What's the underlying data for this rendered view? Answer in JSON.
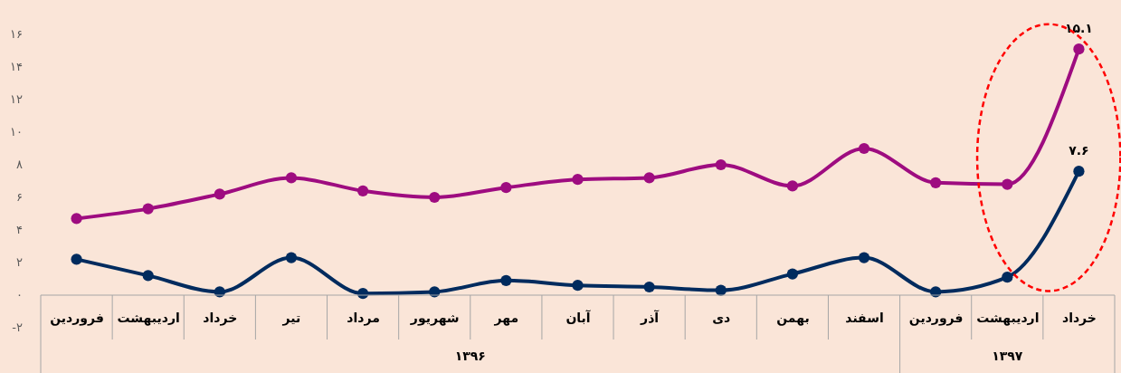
{
  "chart_data": {
    "type": "line",
    "categories": [
      "فروردین",
      "اردیبهشت",
      "خرداد",
      "تیر",
      "مرداد",
      "شهریور",
      "مهر",
      "آبان",
      "آذر",
      "دی",
      "بهمن",
      "اسفند",
      "فروردین",
      "اردیبهشت",
      "خرداد"
    ],
    "series": [
      {
        "color": "#9e0c80",
        "values": [
          4.7,
          5.3,
          6.2,
          7.2,
          6.4,
          6.0,
          6.6,
          7.1,
          7.2,
          8.0,
          6.7,
          9.0,
          6.9,
          6.8,
          15.1
        ],
        "value_labels": [
          null,
          null,
          null,
          null,
          null,
          null,
          null,
          null,
          null,
          null,
          null,
          null,
          null,
          null,
          "۱۵.۱"
        ]
      },
      {
        "color": "#002b5e",
        "values": [
          2.2,
          1.2,
          0.2,
          2.3,
          0.1,
          0.2,
          0.9,
          0.6,
          0.5,
          0.3,
          1.3,
          2.3,
          0.2,
          1.1,
          7.6
        ],
        "value_labels": [
          null,
          null,
          null,
          null,
          null,
          null,
          null,
          null,
          null,
          null,
          null,
          null,
          null,
          null,
          "۷.۶"
        ]
      }
    ],
    "ylim": [
      -2,
      16
    ],
    "yticks": [
      {
        "value": -2,
        "label": "-۲"
      },
      {
        "value": 0,
        "label": "۰"
      },
      {
        "value": 2,
        "label": "۲"
      },
      {
        "value": 4,
        "label": "۴"
      },
      {
        "value": 6,
        "label": "۶"
      },
      {
        "value": 8,
        "label": "۸"
      },
      {
        "value": 10,
        "label": "۱۰"
      },
      {
        "value": 12,
        "label": "۱۲"
      },
      {
        "value": 14,
        "label": "۱۴"
      },
      {
        "value": 16,
        "label": "۱۶"
      }
    ],
    "annotations": [
      "۱۳۹۶",
      "۱۳۹۷"
    ],
    "marker": "circle",
    "line_style": "solid",
    "legend": false
  }
}
